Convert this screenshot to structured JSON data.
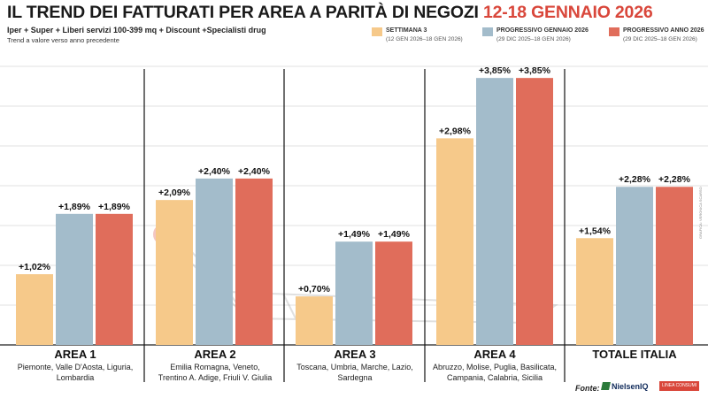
{
  "title": {
    "main": "IL TREND DEI FATTURATI PER AREA A PARITÀ DI NEGOZI",
    "period": "12-18 GENNAIO 2026"
  },
  "subtitle": "Iper + Super + Liberi servizi 100-399 mq + Discount +Specialisti drug",
  "note": "Trend a valore verso anno precedente",
  "source": {
    "label": "Fonte:",
    "logo_nielsen": "NielsenIQ",
    "logo_partner": "LINEA\nCONSUMI"
  },
  "credit": "GRAFICA: VERONICA SCARSO",
  "colors": {
    "settimana": "#f6c98a",
    "progressivo_gennaio": "#a3bccb",
    "progressivo_anno": "#e06d5b",
    "accent": "#d9473b"
  },
  "chart_data": {
    "type": "bar",
    "title": "IL TREND DEI FATTURATI PER AREA A PARITÀ DI NEGOZI 12-18 GENNAIO 2026",
    "ylabel": "Trend a valore verso anno precedente (%)",
    "ylim": [
      0,
      4.2
    ],
    "grid": true,
    "legend_position": "top-right",
    "categories": [
      "AREA 1",
      "AREA 2",
      "AREA 3",
      "AREA 4",
      "TOTALE ITALIA"
    ],
    "category_regions": [
      [
        "Piemonte, Valle D'Aosta, Liguria,",
        "Lombardia"
      ],
      [
        "Emilia Romagna, Veneto,",
        "Trentino A. Adige, Friuli V. Giulia"
      ],
      [
        "Toscana, Umbria, Marche, Lazio,",
        "Sardegna"
      ],
      [
        "Abruzzo, Molise, Puglia, Basilicata,",
        "Campania, Calabria, Sicilia"
      ],
      []
    ],
    "series": [
      {
        "name": "SETTIMANA 3",
        "period": "(12 GEN 2026–18 GEN 2026)",
        "values": [
          1.02,
          2.09,
          0.7,
          2.98,
          1.54
        ],
        "labels": [
          "+1,02%",
          "+2,09%",
          "+0,70%",
          "+2,98%",
          "+1,54%"
        ]
      },
      {
        "name": "PROGRESSIVO GENNAIO 2026",
        "period": "(29 DIC 2025–18 GEN 2026)",
        "values": [
          1.89,
          2.4,
          1.49,
          3.85,
          2.28
        ],
        "labels": [
          "+1,89%",
          "+2,40%",
          "+1,49%",
          "+3,85%",
          "+2,28%"
        ]
      },
      {
        "name": "PROGRESSIVO ANNO 2026",
        "period": "(29 DIC 2025–18 GEN 2026)",
        "values": [
          1.89,
          2.4,
          1.49,
          3.85,
          2.28
        ],
        "labels": [
          "+1,89%",
          "+2,40%",
          "+1,49%",
          "+3,85%",
          "+2,28%"
        ]
      }
    ]
  }
}
